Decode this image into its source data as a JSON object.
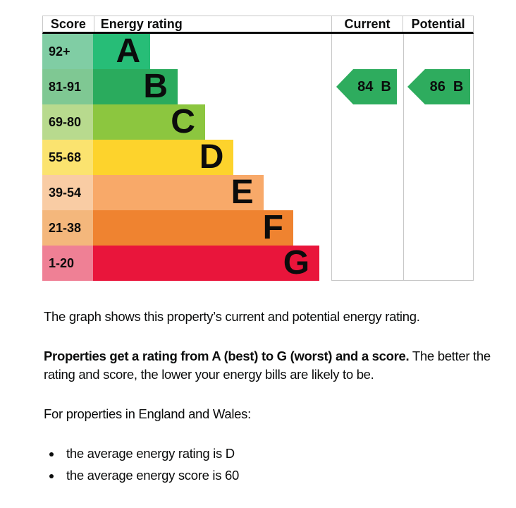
{
  "chart_data": {
    "type": "bar",
    "title": "Energy rating",
    "headers": {
      "score": "Score",
      "rating": "Energy rating",
      "current": "Current",
      "potential": "Potential"
    },
    "bands": [
      {
        "range": "92+",
        "letter": "A",
        "color": "#27bd77",
        "tint": "#80cda4",
        "width_pct": 24
      },
      {
        "range": "81-91",
        "letter": "B",
        "color": "#2aab5d",
        "tint": "#7fc893",
        "width_pct": 35.5
      },
      {
        "range": "69-80",
        "letter": "C",
        "color": "#8cc63f",
        "tint": "#b8da8e",
        "width_pct": 47
      },
      {
        "range": "55-68",
        "letter": "D",
        "color": "#fdd32c",
        "tint": "#fbe36f",
        "width_pct": 59
      },
      {
        "range": "39-54",
        "letter": "E",
        "color": "#f8a969",
        "tint": "#f9cca4",
        "width_pct": 71.5
      },
      {
        "range": "21-38",
        "letter": "F",
        "color": "#ef8330",
        "tint": "#f4b77c",
        "width_pct": 84
      },
      {
        "range": "1-20",
        "letter": "G",
        "color": "#e9153b",
        "tint": "#ef8095",
        "width_pct": 95
      }
    ],
    "current": {
      "score": "84",
      "rating": "B",
      "arrow_color": "#2eac5e",
      "band_index": 1
    },
    "potential": {
      "score": "86",
      "rating": "B",
      "arrow_color": "#2eac5e",
      "band_index": 1
    }
  },
  "description": {
    "intro": "The graph shows this property’s current and potential energy rating.",
    "rating_sentence_bold": "Properties get a rating from A (best) to G (worst) and a score.",
    "rating_sentence_rest": "The better the rating and score, the lower your energy bills are likely to be.",
    "region_line": "For properties in England and Wales:",
    "bullets": [
      "the average energy rating is D",
      "the average energy score is 60"
    ]
  }
}
